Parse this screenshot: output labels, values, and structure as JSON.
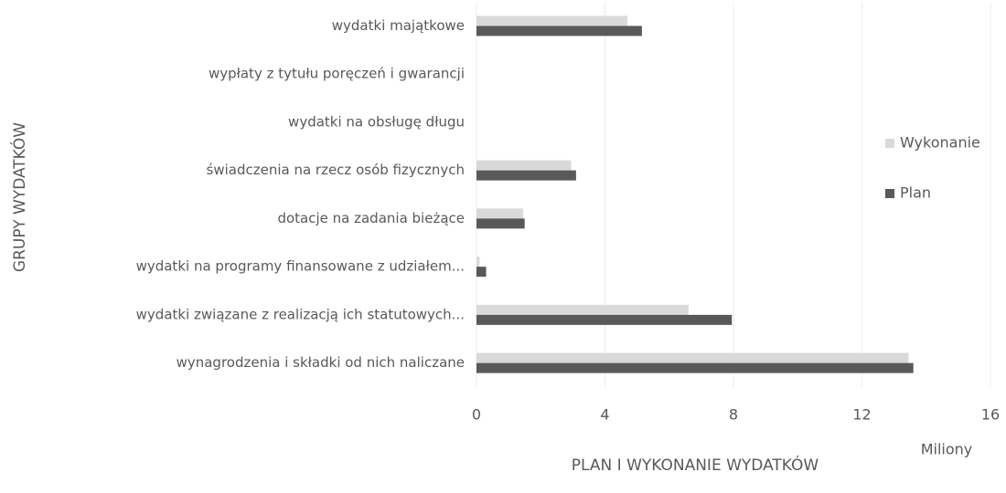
{
  "chart_data": {
    "type": "hbar",
    "x_axis_title": "PLAN I WYKONANIE WYDATKÓW",
    "y_axis_title": "GRUPY WYDATKÓW",
    "x_unit_label": "Miliony",
    "categories": [
      "wydatki majątkowe",
      "wypłaty z tytułu poręczeń i gwarancji",
      "wydatki na obsługę długu",
      "świadczenia na rzecz osób fizycznych",
      "dotacje na zadania bieżące",
      "wydatki na programy finansowane z udziałem...",
      "wydatki związane z realizacją ich statutowych...",
      "wynagrodzenia i składki od nich naliczane"
    ],
    "series": [
      {
        "name": "Wykonanie",
        "color": "#d9d9d9",
        "values": [
          4.7,
          0,
          0,
          2.95,
          1.45,
          0.1,
          6.6,
          13.45
        ]
      },
      {
        "name": "Plan",
        "color": "#595959",
        "values": [
          5.15,
          0,
          0,
          3.1,
          1.5,
          0.3,
          7.95,
          13.6
        ]
      }
    ],
    "xlim": [
      0,
      16
    ],
    "xticks": [
      0,
      4,
      8,
      12,
      16
    ],
    "grid": true
  }
}
